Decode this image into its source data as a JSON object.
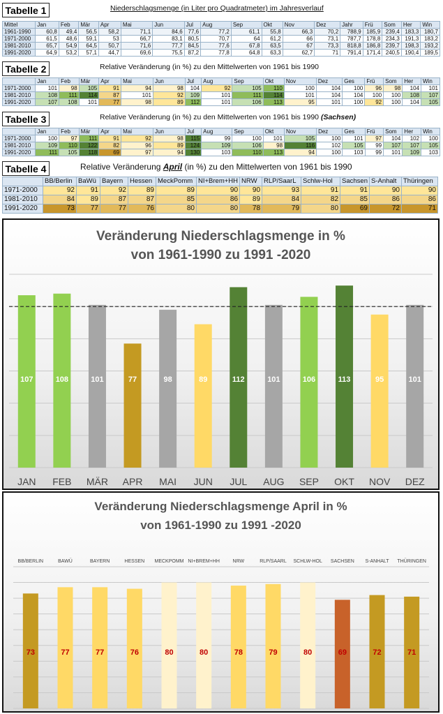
{
  "tabelle1": {
    "label": "Tabelle 1",
    "title": "Niederschlagsmenge (in Liter pro Quadratmeter) im Jahresverlauf",
    "headers": [
      "Mittel",
      "Jan",
      "Feb",
      "Mär",
      "Apr",
      "Mai",
      "Jun",
      "Jul",
      "Aug",
      "Sep",
      "Okt",
      "Nov",
      "Dez",
      "Jahr",
      "Frü",
      "Som",
      "Her",
      "Win"
    ],
    "rows": [
      {
        "label": "1961-1990",
        "values": [
          "60,8",
          "49,4",
          "56,5",
          "58,2",
          "71,1",
          "84,6",
          "77,6",
          "77,2",
          "61,1",
          "55,8",
          "66,3",
          "70,2",
          "788,9",
          "185,9",
          "239,4",
          "183,3",
          "180,7"
        ]
      },
      {
        "label": "1971-2000",
        "values": [
          "61,5",
          "48,6",
          "59,1",
          "53",
          "66,7",
          "83,1",
          "80,5",
          "70,7",
          "64",
          "61,2",
          "66",
          "73,1",
          "787,7",
          "178,8",
          "234,3",
          "191,3",
          "183,2"
        ]
      },
      {
        "label": "1981-2010",
        "values": [
          "65,7",
          "54,9",
          "64,5",
          "50,7",
          "71,6",
          "77,7",
          "84,5",
          "77,6",
          "67,8",
          "63,5",
          "67",
          "73,3",
          "818,8",
          "186,8",
          "239,7",
          "198,3",
          "193,2"
        ]
      },
      {
        "label": "1991-2020",
        "values": [
          "64,9",
          "53,2",
          "57,1",
          "44,7",
          "69,6",
          "75,5",
          "87,2",
          "77,8",
          "64,8",
          "63,3",
          "62,7",
          "71",
          "791,4",
          "171,4",
          "240,5",
          "190,4",
          "189,5"
        ]
      }
    ]
  },
  "tabelle2": {
    "label": "Tabelle 2",
    "title": "Relative Veränderung (in %) zu den Mittelwerten von 1961 bis 1990",
    "headers": [
      "",
      "Jan",
      "Feb",
      "Mär",
      "Apr",
      "Mai",
      "Jun",
      "Jul",
      "Aug",
      "Sep",
      "Okt",
      "Nov",
      "Dez",
      "Ges",
      "Frü",
      "Som",
      "Her",
      "Win"
    ],
    "rows": [
      {
        "label": "1971-2000",
        "values": [
          "101",
          "98",
          "105",
          "91",
          "94",
          "98",
          "104",
          "92",
          "105",
          "110",
          "100",
          "104",
          "100",
          "96",
          "98",
          "104",
          "101"
        ]
      },
      {
        "label": "1981-2010",
        "values": [
          "108",
          "111",
          "114",
          "87",
          "101",
          "92",
          "109",
          "101",
          "111",
          "114",
          "101",
          "104",
          "104",
          "100",
          "100",
          "108",
          "107"
        ]
      },
      {
        "label": "1991-2020",
        "values": [
          "107",
          "108",
          "101",
          "77",
          "98",
          "89",
          "112",
          "101",
          "106",
          "113",
          "95",
          "101",
          "100",
          "92",
          "100",
          "104",
          "105"
        ]
      }
    ]
  },
  "tabelle3": {
    "label": "Tabelle 3",
    "title": "Relative Veränderung (in %) zu den Mittelwerten von 1961 bis 1990",
    "title_suffix": "(Sachsen)",
    "headers": [
      "",
      "Jan",
      "Feb",
      "Mär",
      "Apr",
      "Mai",
      "Jun",
      "Jul",
      "Aug",
      "Sep",
      "Okt",
      "Nov",
      "Dez",
      "Ges",
      "Frü",
      "Som",
      "Her",
      "Win"
    ],
    "rows": [
      {
        "label": "1971-2000",
        "values": [
          "100",
          "97",
          "111",
          "91",
          "92",
          "98",
          "115",
          "99",
          "100",
          "101",
          "105",
          "100",
          "101",
          "97",
          "104",
          "102",
          "100"
        ]
      },
      {
        "label": "1981-2010",
        "values": [
          "109",
          "110",
          "122",
          "82",
          "96",
          "89",
          "124",
          "109",
          "106",
          "98",
          "116",
          "102",
          "105",
          "99",
          "107",
          "107",
          "105"
        ]
      },
      {
        "label": "1991-2020",
        "values": [
          "111",
          "105",
          "118",
          "69",
          "97",
          "94",
          "130",
          "103",
          "110",
          "113",
          "94",
          "100",
          "103",
          "99",
          "101",
          "109",
          "103"
        ]
      }
    ]
  },
  "tabelle4": {
    "label": "Tabelle 4",
    "title_prefix": "Relative Veränderung",
    "title_em": "April",
    "title_suffix": "(in %) zu den Mittelwerten von 1961 bis 1990",
    "headers": [
      "",
      "BB/Berlin",
      "BaWü",
      "Bayern",
      "Hessen",
      "MeckPomm",
      "NI+Brem+HH",
      "NRW",
      "RLP/SaarL",
      "Schlw-Hol",
      "Sachsen",
      "S-Anhalt",
      "Thüringen"
    ],
    "rows": [
      {
        "label": "1971-2000",
        "values": [
          "92",
          "91",
          "92",
          "89",
          "89",
          "90",
          "90",
          "93",
          "91",
          "91",
          "90",
          "90"
        ]
      },
      {
        "label": "1981-2010",
        "values": [
          "84",
          "89",
          "87",
          "87",
          "85",
          "86",
          "89",
          "84",
          "82",
          "85",
          "86",
          "86"
        ]
      },
      {
        "label": "1991-2020",
        "values": [
          "73",
          "77",
          "77",
          "76",
          "80",
          "80",
          "78",
          "79",
          "80",
          "69",
          "72",
          "71"
        ]
      }
    ]
  },
  "colors": {
    "green_light": "#92d050",
    "green_dark": "#548235",
    "gray": "#a6a6a6",
    "gold": "#c49a22",
    "yellow_light": "#ffd966",
    "yellow_pale": "#fff2cc",
    "orange": "#c8622a",
    "header_blue": "#dbe6f2"
  },
  "chart_data": [
    {
      "type": "bar",
      "title_line1": "Veränderung Niederschlagsmenge in %",
      "title_line2": "von 1961-1990 zu 1991 -2020",
      "categories": [
        "JAN",
        "FEB",
        "MÄR",
        "APR",
        "MAI",
        "JUN",
        "JUL",
        "AUG",
        "SEP",
        "OKT",
        "NOV",
        "DEZ"
      ],
      "values": [
        107,
        108,
        101,
        77,
        98,
        89,
        112,
        101,
        106,
        113,
        95,
        101
      ],
      "bar_colors": [
        "#92d050",
        "#92d050",
        "#a6a6a6",
        "#c49a22",
        "#a6a6a6",
        "#ffd966",
        "#548235",
        "#a6a6a6",
        "#92d050",
        "#548235",
        "#ffd966",
        "#a6a6a6"
      ],
      "reference_line": 100,
      "ylim": [
        0,
        120
      ],
      "grid": true,
      "label_color": "#ffffff"
    },
    {
      "type": "bar",
      "title_line1": "Veränderung Niederschlagsmenge April in %",
      "title_line2": "von 1961-1990 zu 1991 -2020",
      "categories": [
        "BB/BERLIN",
        "BAWÜ",
        "BAYERN",
        "HESSEN",
        "MECKPOMM",
        "NI+BREM+HH",
        "NRW",
        "RLP/SAARL",
        "SCHLW-HOL",
        "SACHSEN",
        "S-ANHALT",
        "THÜRINGEN"
      ],
      "values": [
        73,
        77,
        77,
        76,
        80,
        80,
        78,
        79,
        80,
        69,
        72,
        71
      ],
      "bar_colors": [
        "#c49a22",
        "#ffd966",
        "#ffd966",
        "#ffd966",
        "#fff2cc",
        "#fff2cc",
        "#ffd966",
        "#ffd966",
        "#fff2cc",
        "#c8622a",
        "#c49a22",
        "#c49a22"
      ],
      "ylim": [
        0,
        90
      ],
      "grid": true,
      "label_color": "#c00000"
    }
  ]
}
